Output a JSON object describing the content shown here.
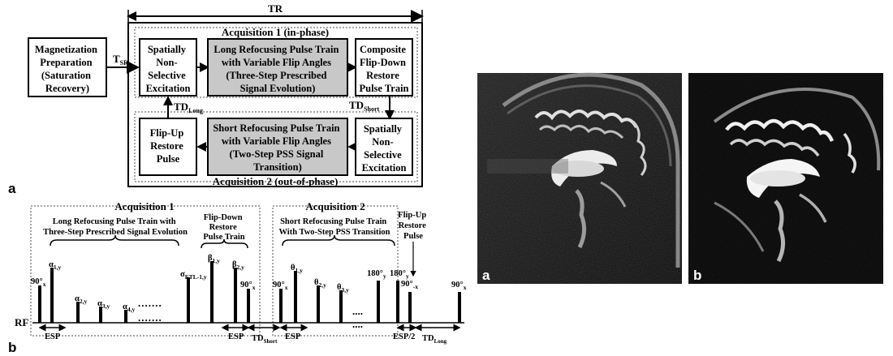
{
  "tr_label": "TR",
  "tsr_label": "T",
  "tsr_sub": "SR",
  "acq1_title": "Acquisition 1 (in-phase)",
  "acq2_title": "Acquisition 2 (out-of-phase)",
  "box_mag": [
    "Magnetization",
    "Preparation",
    "(Saturation",
    "Recovery)"
  ],
  "box_snse1": [
    "Spatially",
    "Non-",
    "Selective",
    "Excitation"
  ],
  "box_long": [
    "Long Refocusing Pulse Train",
    "with Variable Flip Angles",
    "(Three-Step Prescribed",
    "Signal Evolution)"
  ],
  "box_composite": [
    "Composite",
    "Flip-Down",
    "Restore",
    "Pulse Train"
  ],
  "box_flipup": [
    "Flip-Up",
    "Restore",
    "Pulse"
  ],
  "box_short": [
    "Short Refocusing Pulse Train",
    "with Variable Flip Angles",
    "(Two-Step PSS Signal",
    "Transition)"
  ],
  "box_snse2": [
    "Spatially",
    "Non-",
    "Selective",
    "Excitation"
  ],
  "td_long_label": "TD",
  "td_long_sub": "Long",
  "td_short_label": "TD",
  "td_short_sub": "Short",
  "panel_a": "a",
  "panel_b": "b",
  "seq_acq1": "Acquisition 1",
  "seq_acq2": "Acquisition 2",
  "seq_long_brace": [
    "Long Refocusing Pulse Train with",
    "Three-Step Prescribed Signal Evolution"
  ],
  "seq_flipdown_brace": [
    "Flip-Down",
    "Restore",
    "Pulse Train"
  ],
  "seq_short_brace": [
    "Short Refocusing Pulse Train",
    "With Two-Step PSS Transition"
  ],
  "seq_flipup": [
    "Flip-Up",
    "Restore",
    "Pulse"
  ],
  "rf_label": "RF",
  "esp_label": "ESP",
  "esp2_label": "ESP/2",
  "pulse_labels": {
    "p90x": "90°",
    "p90x_sub": "x",
    "a1": "α",
    "a1_sub": "1,y",
    "a2": "α",
    "a2_sub": "2,y",
    "a3": "α",
    "a3_sub": "3,y",
    "a4": "α",
    "a4_sub": "4,y",
    "sigma": "σ",
    "sigma_sub": "ETL-1,y",
    "b1": "β",
    "b1_sub": "1,y",
    "b2": "β",
    "b2_sub": "2,y",
    "p90x2": "90°",
    "p90x2_sub": "x",
    "p90x3": "90°",
    "p90x3_sub": "x",
    "t1": "θ",
    "t1_sub": "1,y",
    "t2": "θ",
    "t2_sub": "2,y",
    "t3": "θ",
    "t3_sub": "3,y",
    "p180a": "180°",
    "p180a_sub": "y",
    "p180b": "180°",
    "p180b_sub": "y",
    "p90mx": "90°",
    "p90mx_sub": "-x",
    "p90x4": "90°",
    "p90x4_sub": "x"
  },
  "img_a_label": "a",
  "img_b_label": "b"
}
